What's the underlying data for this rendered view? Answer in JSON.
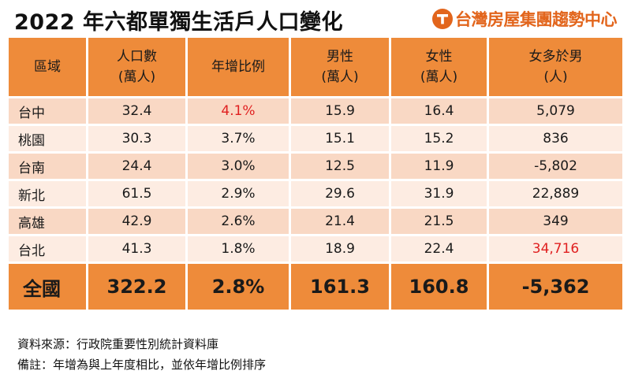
{
  "title": "2022 年六都單獨生活戶人口變化",
  "brand": {
    "name": "台灣房屋集團趨勢中心",
    "logo_icon": "taiwan-realty-logo-icon",
    "color": "#e2651c"
  },
  "colors": {
    "header_bg": "#ee8b3a",
    "row_odd": "#f9d8c4",
    "row_even": "#fdece2",
    "highlight": "#e02020"
  },
  "chart_data": {
    "type": "table",
    "title": "2022 年六都單獨生活戶人口變化",
    "columns": [
      {
        "line1": "區域",
        "line2": ""
      },
      {
        "line1": "人口數",
        "line2": "(萬人)"
      },
      {
        "line1": "年增比例",
        "line2": ""
      },
      {
        "line1": "男性",
        "line2": "(萬人)"
      },
      {
        "line1": "女性",
        "line2": "(萬人)"
      },
      {
        "line1": "女多於男",
        "line2": "(人)"
      }
    ],
    "rows": [
      {
        "region": "台中",
        "population": "32.4",
        "growth": "4.1%",
        "male": "15.9",
        "female": "16.4",
        "female_minus_male": "5,079"
      },
      {
        "region": "桃園",
        "population": "30.3",
        "growth": "3.7%",
        "male": "15.1",
        "female": "15.2",
        "female_minus_male": "836"
      },
      {
        "region": "台南",
        "population": "24.4",
        "growth": "3.0%",
        "male": "12.5",
        "female": "11.9",
        "female_minus_male": "-5,802"
      },
      {
        "region": "新北",
        "population": "61.5",
        "growth": "2.9%",
        "male": "29.6",
        "female": "31.9",
        "female_minus_male": "22,889"
      },
      {
        "region": "高雄",
        "population": "42.9",
        "growth": "2.6%",
        "male": "21.4",
        "female": "21.5",
        "female_minus_male": "349"
      },
      {
        "region": "台北",
        "population": "41.3",
        "growth": "1.8%",
        "male": "18.9",
        "female": "22.4",
        "female_minus_male": "34,716"
      }
    ],
    "total": {
      "region": "全國",
      "population": "322.2",
      "growth": "2.8%",
      "male": "161.3",
      "female": "160.8",
      "female_minus_male": "-5,362"
    }
  },
  "notes": {
    "source": "資料來源：行政院重要性別統計資料庫",
    "remark": "備註：年增為與上年度相比，並依年增比例排序"
  }
}
